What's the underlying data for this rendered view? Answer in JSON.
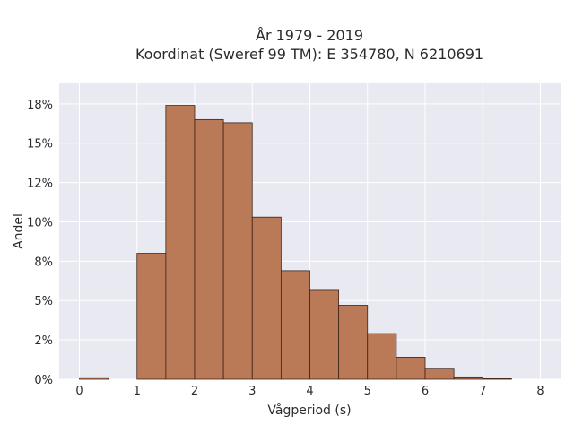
{
  "chart_data": {
    "type": "bar",
    "title_line1": "År 1979 - 2019",
    "title_line2": "Koordinat (Sweref 99 TM): E 354780, N 6210691",
    "xlabel": "Vågperiod (s)",
    "ylabel": "Andel",
    "xlim": [
      -0.35,
      8.35
    ],
    "ylim": [
      0,
      18.8
    ],
    "x_ticks": [
      0,
      1,
      2,
      3,
      4,
      5,
      6,
      7,
      8
    ],
    "x_tick_labels": [
      "0",
      "1",
      "2",
      "3",
      "4",
      "5",
      "6",
      "7",
      "8"
    ],
    "y_ticks": [
      0,
      2.5,
      5,
      7.5,
      10,
      12.5,
      15,
      17.5
    ],
    "y_tick_labels": [
      "0%",
      "2%",
      "5%",
      "8%",
      "10%",
      "12%",
      "15%",
      "18%"
    ],
    "bin_width": 0.5,
    "bins": [
      {
        "x0": 0.0,
        "value": 0.1
      },
      {
        "x0": 0.5,
        "value": 0.0
      },
      {
        "x0": 1.0,
        "value": 8.0
      },
      {
        "x0": 1.5,
        "value": 17.4
      },
      {
        "x0": 2.0,
        "value": 16.5
      },
      {
        "x0": 2.5,
        "value": 16.3
      },
      {
        "x0": 3.0,
        "value": 10.3
      },
      {
        "x0": 3.5,
        "value": 6.9
      },
      {
        "x0": 4.0,
        "value": 5.7
      },
      {
        "x0": 4.5,
        "value": 4.7
      },
      {
        "x0": 5.0,
        "value": 2.9
      },
      {
        "x0": 5.5,
        "value": 1.4
      },
      {
        "x0": 6.0,
        "value": 0.7
      },
      {
        "x0": 6.5,
        "value": 0.15
      },
      {
        "x0": 7.0,
        "value": 0.05
      },
      {
        "x0": 7.5,
        "value": 0.0
      }
    ],
    "grid": true,
    "legend": "none",
    "bar_color": "#bb7a57",
    "bar_edge_color": "#3b2418",
    "plot_background": "#e9e9f1",
    "grid_color": "#ffffff"
  }
}
